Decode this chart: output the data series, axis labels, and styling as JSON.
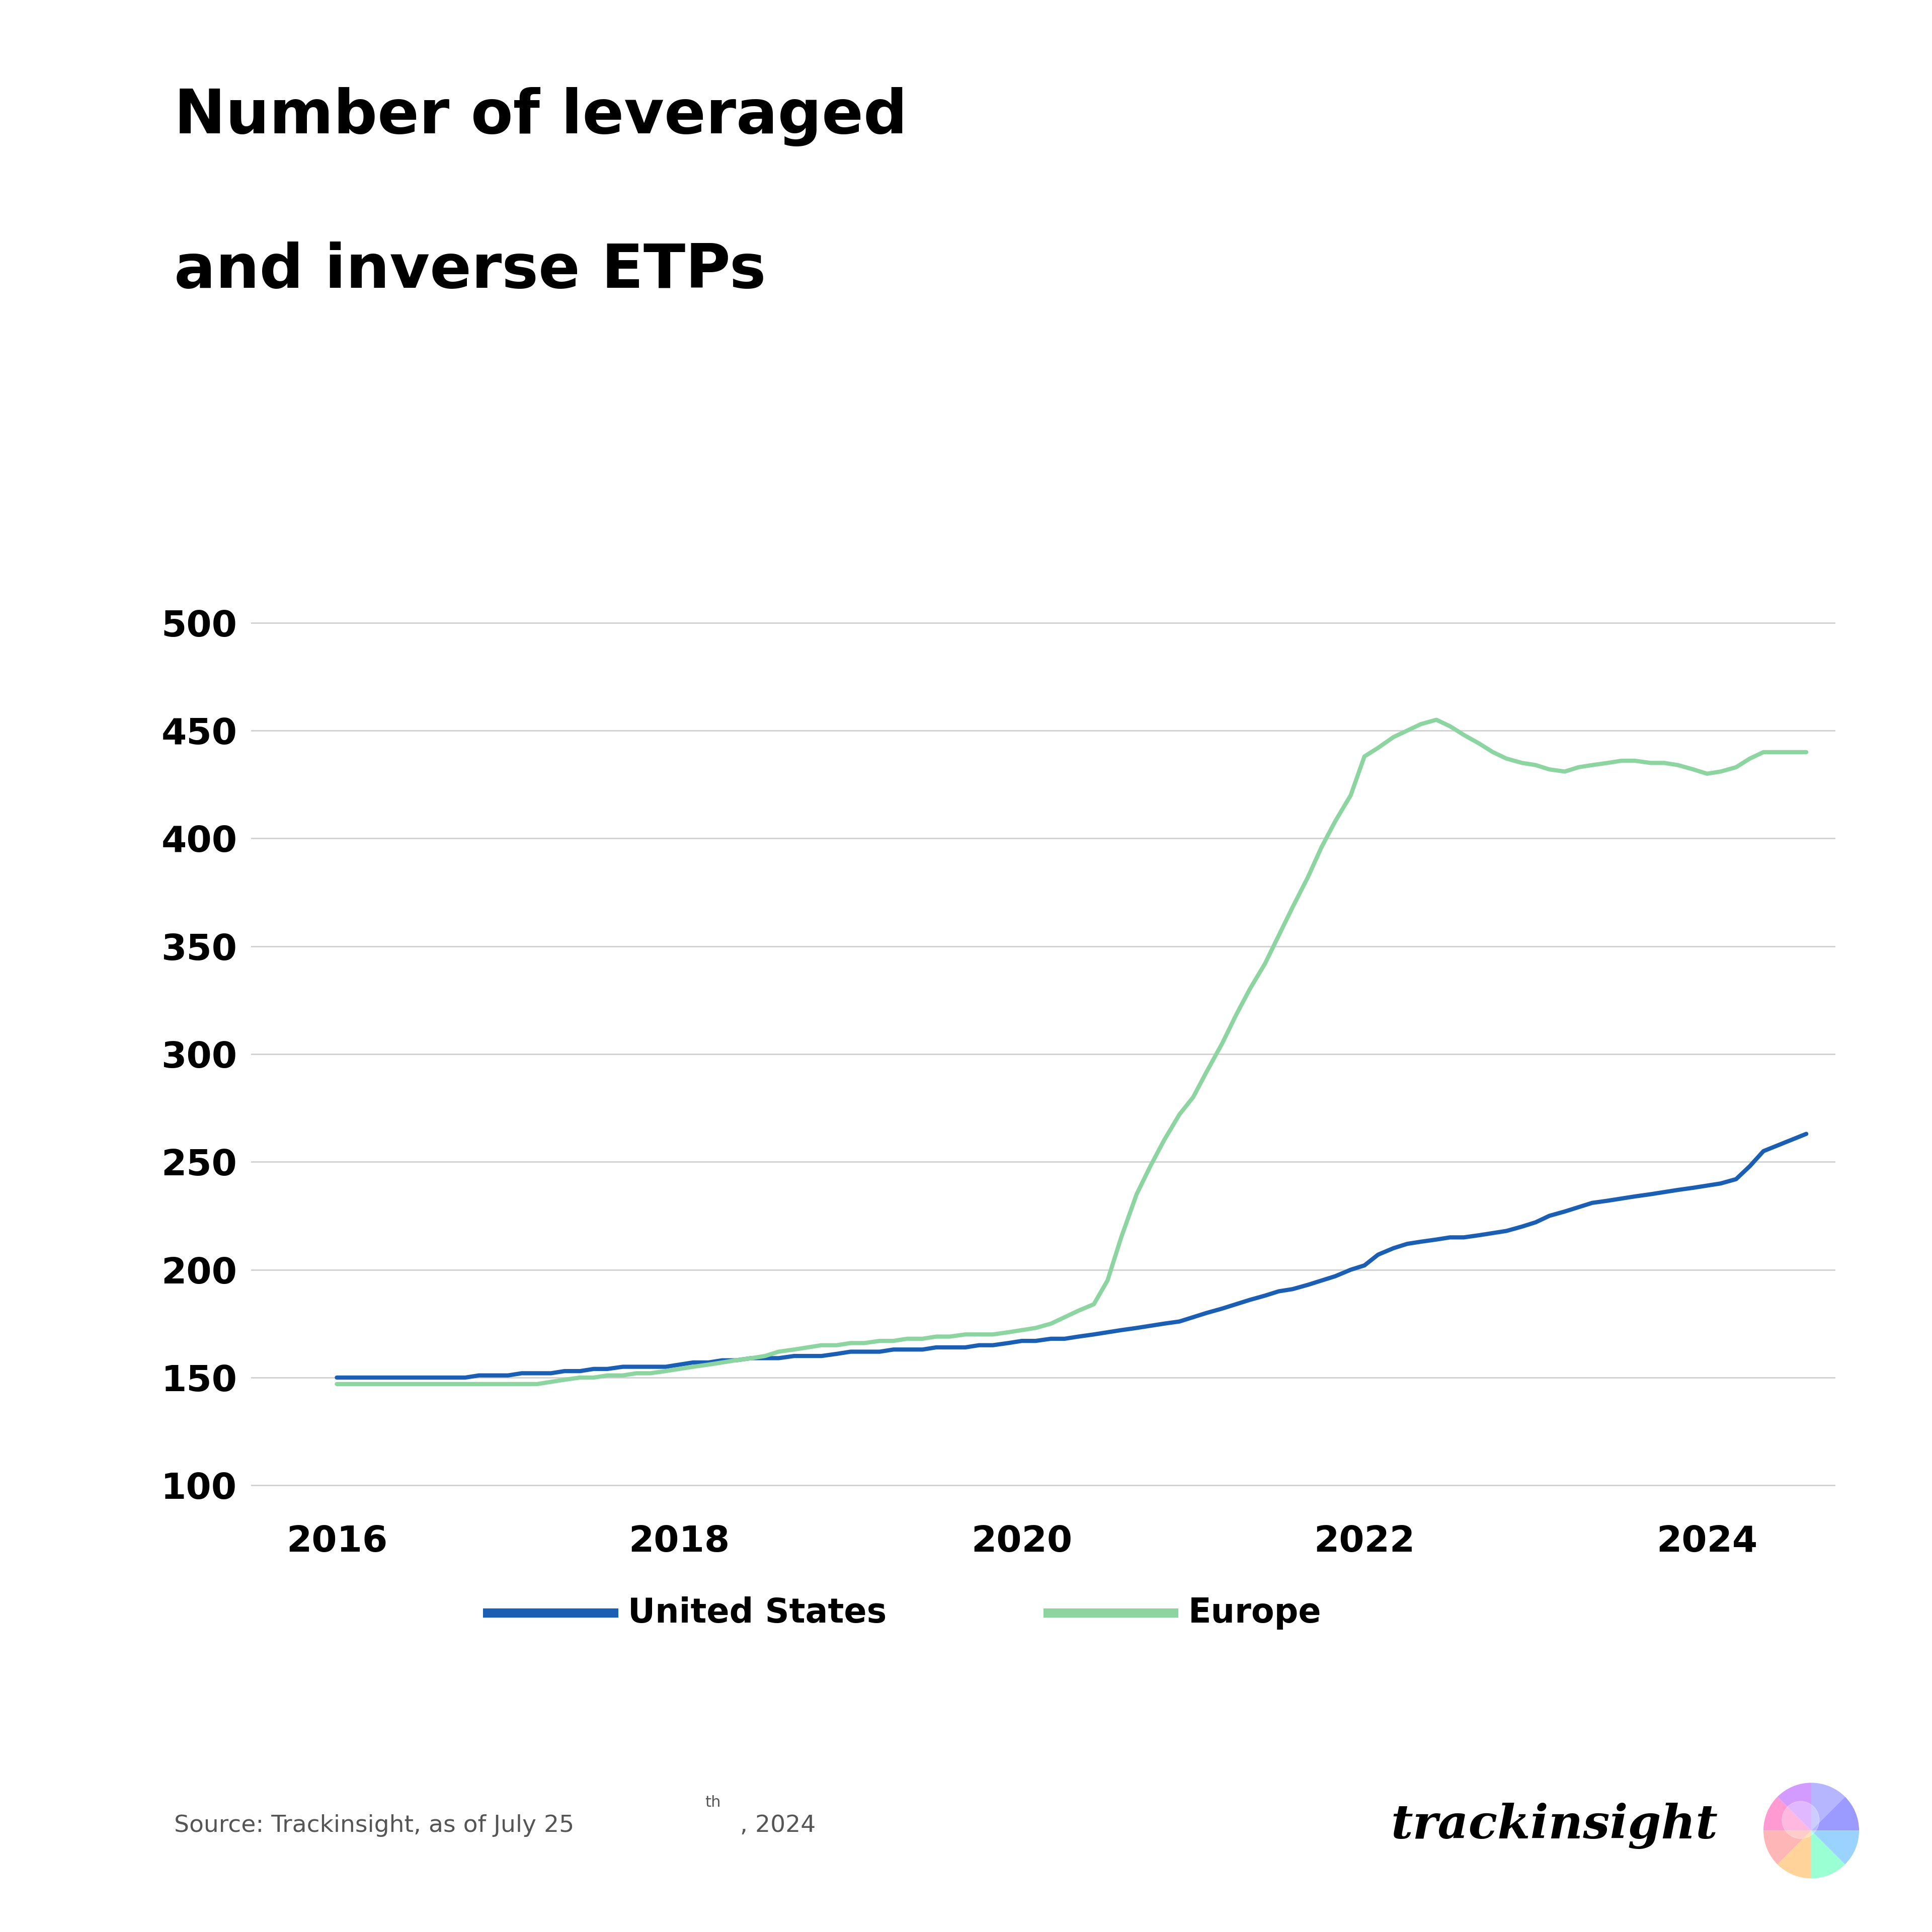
{
  "title_line1": "Number of leveraged",
  "title_line2": "and inverse ETPs",
  "title_fontsize": 88,
  "title_fontweight": "bold",
  "background_color": "#ffffff",
  "us_color": "#1a5fb4",
  "eu_color": "#8dd5a0",
  "us_label": "United States",
  "eu_label": "Europe",
  "ylim": [
    90,
    520
  ],
  "yticks": [
    100,
    150,
    200,
    250,
    300,
    350,
    400,
    450,
    500
  ],
  "xlim": [
    2015.5,
    2024.75
  ],
  "xticks": [
    2016,
    2018,
    2020,
    2022,
    2024
  ],
  "grid_color": "#d0d0d0",
  "tick_fontsize": 52,
  "legend_fontsize": 48,
  "source_text": "Source: Trackinsight, as of July 25",
  "source_superscript": "th",
  "source_suffix": ", 2024",
  "source_fontsize": 34,
  "line_width": 6,
  "us_x": [
    2016.0,
    2016.08,
    2016.17,
    2016.25,
    2016.33,
    2016.42,
    2016.5,
    2016.58,
    2016.67,
    2016.75,
    2016.83,
    2016.92,
    2017.0,
    2017.08,
    2017.17,
    2017.25,
    2017.33,
    2017.42,
    2017.5,
    2017.58,
    2017.67,
    2017.75,
    2017.83,
    2017.92,
    2018.0,
    2018.08,
    2018.17,
    2018.25,
    2018.33,
    2018.42,
    2018.5,
    2018.58,
    2018.67,
    2018.75,
    2018.83,
    2018.92,
    2019.0,
    2019.08,
    2019.17,
    2019.25,
    2019.33,
    2019.42,
    2019.5,
    2019.58,
    2019.67,
    2019.75,
    2019.83,
    2019.92,
    2020.0,
    2020.08,
    2020.17,
    2020.25,
    2020.33,
    2020.42,
    2020.5,
    2020.58,
    2020.67,
    2020.75,
    2020.83,
    2020.92,
    2021.0,
    2021.08,
    2021.17,
    2021.25,
    2021.33,
    2021.42,
    2021.5,
    2021.58,
    2021.67,
    2021.75,
    2021.83,
    2021.92,
    2022.0,
    2022.08,
    2022.17,
    2022.25,
    2022.33,
    2022.42,
    2022.5,
    2022.58,
    2022.67,
    2022.75,
    2022.83,
    2022.92,
    2023.0,
    2023.08,
    2023.17,
    2023.25,
    2023.33,
    2023.42,
    2023.5,
    2023.58,
    2023.67,
    2023.75,
    2023.83,
    2023.92,
    2024.0,
    2024.08,
    2024.17,
    2024.25,
    2024.33,
    2024.58
  ],
  "us_y": [
    150,
    150,
    150,
    150,
    150,
    150,
    150,
    150,
    150,
    150,
    151,
    151,
    151,
    152,
    152,
    152,
    153,
    153,
    154,
    154,
    155,
    155,
    155,
    155,
    156,
    157,
    157,
    158,
    158,
    159,
    159,
    159,
    160,
    160,
    160,
    161,
    162,
    162,
    162,
    163,
    163,
    163,
    164,
    164,
    164,
    165,
    165,
    166,
    167,
    167,
    168,
    168,
    169,
    170,
    171,
    172,
    173,
    174,
    175,
    176,
    178,
    180,
    182,
    184,
    186,
    188,
    190,
    191,
    193,
    195,
    197,
    200,
    202,
    207,
    210,
    212,
    213,
    214,
    215,
    215,
    216,
    217,
    218,
    220,
    222,
    225,
    227,
    229,
    231,
    232,
    233,
    234,
    235,
    236,
    237,
    238,
    239,
    240,
    242,
    248,
    255,
    263
  ],
  "eu_x": [
    2016.0,
    2016.08,
    2016.17,
    2016.25,
    2016.33,
    2016.42,
    2016.5,
    2016.58,
    2016.67,
    2016.75,
    2016.83,
    2016.92,
    2017.0,
    2017.08,
    2017.17,
    2017.25,
    2017.33,
    2017.42,
    2017.5,
    2017.58,
    2017.67,
    2017.75,
    2017.83,
    2017.92,
    2018.0,
    2018.08,
    2018.17,
    2018.25,
    2018.33,
    2018.42,
    2018.5,
    2018.58,
    2018.67,
    2018.75,
    2018.83,
    2018.92,
    2019.0,
    2019.08,
    2019.17,
    2019.25,
    2019.33,
    2019.42,
    2019.5,
    2019.58,
    2019.67,
    2019.75,
    2019.83,
    2019.92,
    2020.0,
    2020.08,
    2020.17,
    2020.25,
    2020.33,
    2020.42,
    2020.5,
    2020.58,
    2020.67,
    2020.75,
    2020.83,
    2020.92,
    2021.0,
    2021.08,
    2021.17,
    2021.25,
    2021.33,
    2021.42,
    2021.5,
    2021.58,
    2021.67,
    2021.75,
    2021.83,
    2021.92,
    2022.0,
    2022.08,
    2022.17,
    2022.25,
    2022.33,
    2022.42,
    2022.5,
    2022.58,
    2022.67,
    2022.75,
    2022.83,
    2022.92,
    2023.0,
    2023.08,
    2023.17,
    2023.25,
    2023.33,
    2023.42,
    2023.5,
    2023.58,
    2023.67,
    2023.75,
    2023.83,
    2023.92,
    2024.0,
    2024.08,
    2024.17,
    2024.25,
    2024.33,
    2024.58
  ],
  "eu_y": [
    147,
    147,
    147,
    147,
    147,
    147,
    147,
    147,
    147,
    147,
    147,
    147,
    147,
    147,
    147,
    148,
    149,
    150,
    150,
    151,
    151,
    152,
    152,
    153,
    154,
    155,
    156,
    157,
    158,
    159,
    160,
    162,
    163,
    164,
    165,
    165,
    166,
    166,
    167,
    167,
    168,
    168,
    169,
    169,
    170,
    170,
    170,
    171,
    172,
    173,
    175,
    178,
    181,
    184,
    195,
    215,
    235,
    248,
    260,
    272,
    280,
    292,
    305,
    318,
    330,
    342,
    355,
    368,
    382,
    396,
    408,
    420,
    438,
    442,
    447,
    450,
    453,
    455,
    452,
    448,
    444,
    440,
    437,
    435,
    434,
    432,
    431,
    433,
    434,
    435,
    436,
    436,
    435,
    435,
    434,
    432,
    430,
    431,
    433,
    437,
    440,
    440
  ]
}
